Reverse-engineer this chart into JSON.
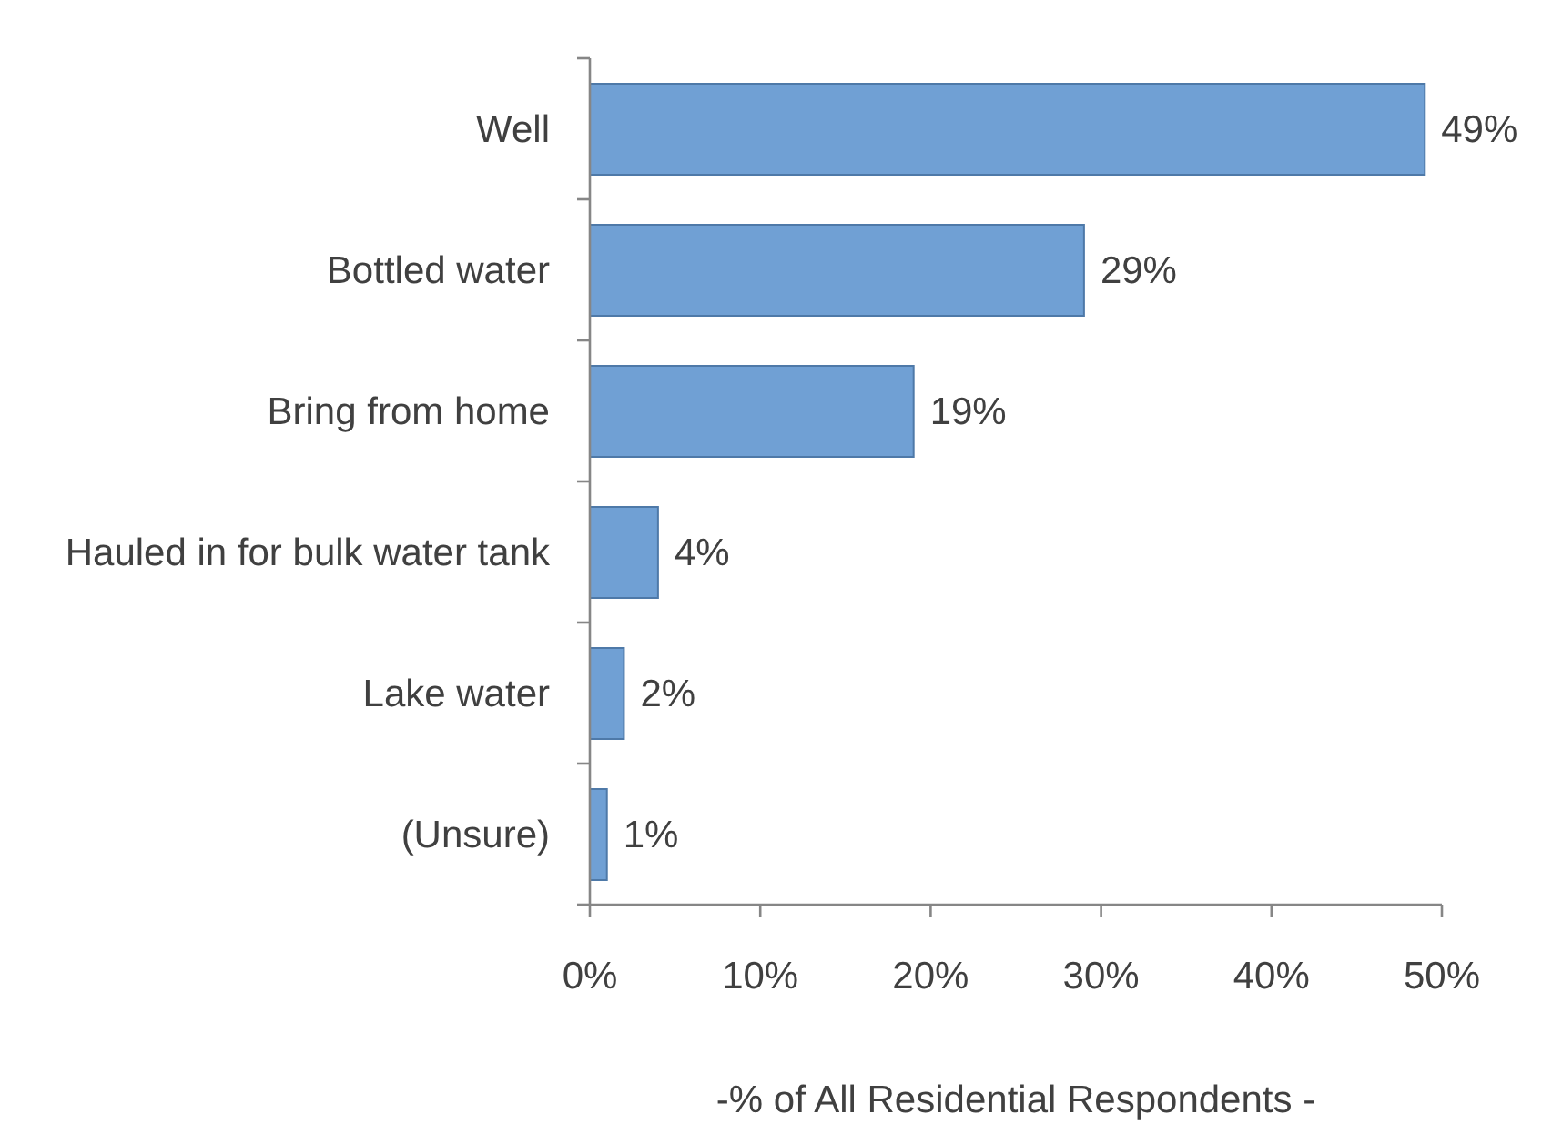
{
  "chart_data": {
    "type": "bar",
    "orientation": "horizontal",
    "categories": [
      "Well",
      "Bottled water",
      "Bring from home",
      "Hauled in for bulk water tank",
      "Lake water",
      "(Unsure)"
    ],
    "values": [
      49,
      29,
      19,
      4,
      2,
      1
    ],
    "value_labels": [
      "49%",
      "29%",
      "19%",
      "4%",
      "2%",
      "1%"
    ],
    "color": "#70a0d4",
    "xlim": [
      0,
      50
    ],
    "xticks": [
      {
        "value": 0,
        "label": "0%"
      },
      {
        "value": 10,
        "label": "10%"
      },
      {
        "value": 20,
        "label": "20%"
      },
      {
        "value": 30,
        "label": "30%"
      },
      {
        "value": 40,
        "label": "40%"
      },
      {
        "value": 50,
        "label": "50%"
      }
    ],
    "xlabel": "-% of All Residential Respondents -"
  }
}
